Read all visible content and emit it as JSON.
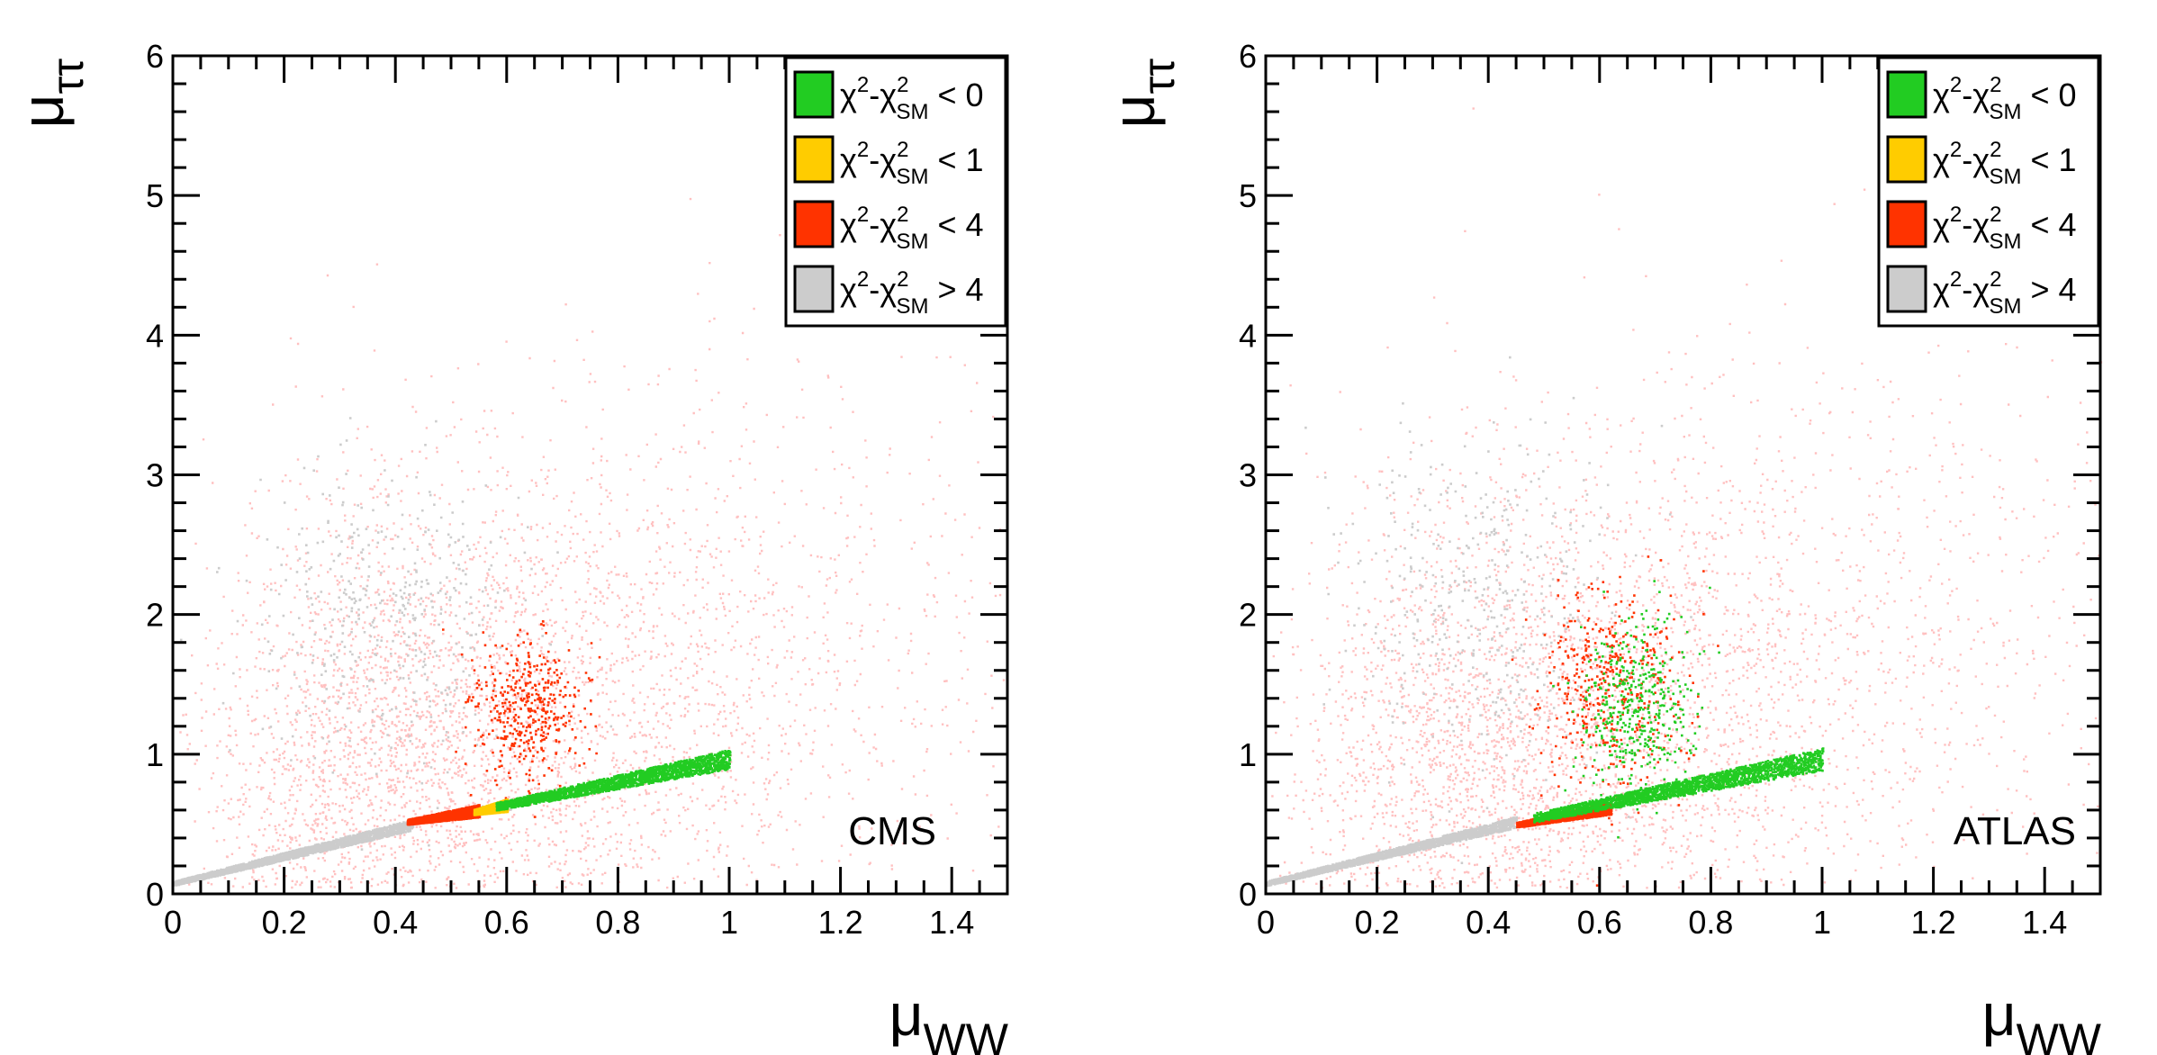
{
  "chart_data": [
    {
      "type": "scatter",
      "panel_label": "CMS",
      "title": "",
      "xlabel": "μ",
      "xlabel_sub": "WW",
      "ylabel": "μ",
      "ylabel_sub": "ττ",
      "xlim": [
        0,
        1.5
      ],
      "ylim": [
        0,
        6
      ],
      "x_ticks": [
        "0",
        "0.2",
        "0.4",
        "0.6",
        "0.8",
        "1",
        "1.2",
        "1.4"
      ],
      "y_ticks": [
        "0",
        "1",
        "2",
        "3",
        "4",
        "5",
        "6"
      ],
      "legend_position": "top-right",
      "legend": [
        {
          "chi": "χ",
          "sup": "2",
          "mid": "-χ",
          "sup2": "2",
          "sub": "SM",
          "tail": " < 0",
          "color": "#22cc22"
        },
        {
          "chi": "χ",
          "sup": "2",
          "mid": "-χ",
          "sup2": "2",
          "sub": "SM",
          "tail": " < 1",
          "color": "#ffcc00"
        },
        {
          "chi": "χ",
          "sup": "2",
          "mid": "-χ",
          "sup2": "2",
          "sub": "SM",
          "tail": " < 4",
          "color": "#ff3300"
        },
        {
          "chi": "χ",
          "sup": "2",
          "mid": "-χ",
          "sup2": "2",
          "sub": "SM",
          "tail": " > 4",
          "color": "#cccccc"
        }
      ],
      "background_color": "#ffc0c0",
      "regions": [
        {
          "series": "χ2-χ2SM > 4",
          "kind": "band",
          "x": [
            0.0,
            0.43
          ],
          "y": [
            0.05,
            0.55
          ],
          "slope_from": [
            0.0,
            0.08
          ],
          "slope_to": [
            0.43,
            0.5
          ],
          "width": 0.08
        },
        {
          "series": "χ2-χ2SM > 4",
          "kind": "cloud",
          "cx": 0.38,
          "cy": 2.0,
          "sx": 0.12,
          "sy": 0.55
        },
        {
          "series": "χ2-χ2SM < 4",
          "kind": "band",
          "slope_from": [
            0.42,
            0.52
          ],
          "slope_to": [
            0.55,
            0.6
          ],
          "width": 0.09
        },
        {
          "series": "χ2-χ2SM < 4",
          "kind": "cloud",
          "cx": 0.64,
          "cy": 1.35,
          "sx": 0.05,
          "sy": 0.25
        },
        {
          "series": "χ2-χ2SM < 1",
          "kind": "band",
          "slope_from": [
            0.54,
            0.59
          ],
          "slope_to": [
            0.6,
            0.64
          ],
          "width": 0.09
        },
        {
          "series": "χ2-χ2SM < 0",
          "kind": "band",
          "slope_from": [
            0.58,
            0.63
          ],
          "slope_to": [
            1.0,
            0.97
          ],
          "width": 0.14
        }
      ]
    },
    {
      "type": "scatter",
      "panel_label": "ATLAS",
      "title": "",
      "xlabel": "μ",
      "xlabel_sub": "WW",
      "ylabel": "μ",
      "ylabel_sub": "ττ",
      "xlim": [
        0,
        1.5
      ],
      "ylim": [
        0,
        6
      ],
      "x_ticks": [
        "0",
        "0.2",
        "0.4",
        "0.6",
        "0.8",
        "1",
        "1.2",
        "1.4"
      ],
      "y_ticks": [
        "0",
        "1",
        "2",
        "3",
        "4",
        "5",
        "6"
      ],
      "legend_position": "top-right",
      "legend": [
        {
          "chi": "χ",
          "sup": "2",
          "mid": "-χ",
          "sup2": "2",
          "sub": "SM",
          "tail": " < 0",
          "color": "#22cc22"
        },
        {
          "chi": "χ",
          "sup": "2",
          "mid": "-χ",
          "sup2": "2",
          "sub": "SM",
          "tail": " < 1",
          "color": "#ffcc00"
        },
        {
          "chi": "χ",
          "sup": "2",
          "mid": "-χ",
          "sup2": "2",
          "sub": "SM",
          "tail": " < 4",
          "color": "#ff3300"
        },
        {
          "chi": "χ",
          "sup": "2",
          "mid": "-χ",
          "sup2": "2",
          "sub": "SM",
          "tail": " > 4",
          "color": "#cccccc"
        }
      ],
      "background_color": "#ffc0c0",
      "regions": [
        {
          "series": "χ2-χ2SM > 4",
          "kind": "band",
          "slope_from": [
            0.0,
            0.08
          ],
          "slope_to": [
            0.45,
            0.52
          ],
          "width": 0.08
        },
        {
          "series": "χ2-χ2SM > 4",
          "kind": "cloud",
          "cx": 0.4,
          "cy": 2.1,
          "sx": 0.12,
          "sy": 0.6
        },
        {
          "series": "χ2-χ2SM < 4",
          "kind": "band",
          "slope_from": [
            0.45,
            0.5
          ],
          "slope_to": [
            0.62,
            0.62
          ],
          "width": 0.09
        },
        {
          "series": "χ2-χ2SM < 4",
          "kind": "cloud",
          "cx": 0.62,
          "cy": 1.5,
          "sx": 0.06,
          "sy": 0.35
        },
        {
          "series": "χ2-χ2SM < 0",
          "kind": "cloud",
          "cx": 0.66,
          "cy": 1.35,
          "sx": 0.05,
          "sy": 0.3
        },
        {
          "series": "χ2-χ2SM < 0",
          "kind": "band",
          "slope_from": [
            0.48,
            0.55
          ],
          "slope_to": [
            1.0,
            0.97
          ],
          "width": 0.16
        }
      ]
    }
  ]
}
